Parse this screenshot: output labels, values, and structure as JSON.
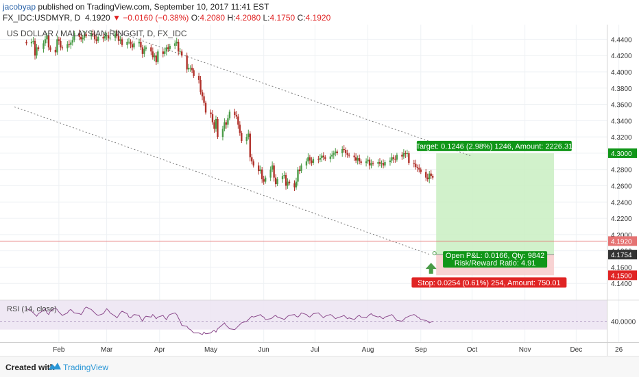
{
  "header": {
    "username": "jacobyap",
    "published": "published on TradingView.com, September 10, 2017 11:41 EST",
    "symbol": "FX_IDC:USDMYR, D",
    "price": "4.1920",
    "change": "−0.0160 (−0.38%)",
    "o_label": "O:",
    "o_value": "4.2080",
    "h_label": "H:",
    "h_value": "4.2080",
    "l_label": "L:",
    "l_value": "4.1750",
    "c_label": "C:",
    "c_value": "4.1920"
  },
  "footer": {
    "created_with": "Created with",
    "brand": "TradingView"
  },
  "colors": {
    "up": "#4a9b47",
    "down": "#b0312a",
    "rsi": "#8b4a8c",
    "target": "#109618",
    "stop": "#e02424",
    "price_line": "#e57373"
  },
  "chart_data": {
    "type": "candlestick",
    "title": "US DOLLAR / MALAYSIAN RINGGIT, D, FX_IDC",
    "y_range": [
      4.12,
      4.458
    ],
    "y_ticks": [
      "4.4400",
      "4.4200",
      "4.4000",
      "4.3800",
      "4.3600",
      "4.3400",
      "4.3200",
      "4.3000",
      "4.2800",
      "4.2600",
      "4.2400",
      "4.2200",
      "4.2000",
      "4.1800",
      "4.1600",
      "4.1400"
    ],
    "x_labels": [
      "Feb",
      "Mar",
      "Apr",
      "May",
      "Jun",
      "Jul",
      "Aug",
      "Sep",
      "Oct",
      "Nov",
      "Dec",
      "26"
    ],
    "day_start": "2017-01-13",
    "last_day": "2017-09-08",
    "closes": [
      4.435,
      4.437,
      4.438,
      4.42,
      4.43,
      4.428,
      4.435,
      4.44,
      4.445,
      4.43,
      4.427,
      4.424,
      4.44,
      4.438,
      4.43,
      4.429,
      4.434,
      4.433,
      4.436,
      4.439,
      4.448,
      4.443,
      4.44,
      4.442,
      4.446,
      4.444,
      4.447,
      4.446,
      4.44,
      4.438,
      4.443,
      4.441,
      4.444,
      4.445,
      4.441,
      4.442,
      4.447,
      4.444,
      4.438,
      4.44,
      4.433,
      4.437,
      4.437,
      4.434,
      4.43,
      4.435,
      4.437,
      4.43,
      4.422,
      4.428,
      4.43,
      4.425,
      4.418,
      4.42,
      4.412,
      4.425,
      4.422,
      4.425,
      4.43,
      4.428,
      4.432,
      4.435,
      4.437,
      4.425,
      4.425,
      4.42,
      4.403,
      4.405,
      4.405,
      4.402,
      4.395,
      4.39,
      4.375,
      4.37,
      4.362,
      4.35,
      4.348,
      4.338,
      4.33,
      4.342,
      4.32,
      4.33,
      4.338,
      4.335,
      4.343,
      4.351,
      4.347,
      4.345,
      4.335,
      4.325,
      4.315,
      4.32,
      4.324,
      4.295,
      4.29,
      4.285,
      4.278,
      4.28,
      4.268,
      4.265,
      4.27,
      4.28,
      4.285,
      4.27,
      4.262,
      4.268,
      4.272,
      4.273,
      4.26,
      4.265,
      4.263,
      4.258,
      4.265,
      4.28,
      4.278,
      4.285,
      4.29,
      4.295,
      4.291,
      4.288,
      4.293,
      4.292,
      4.294,
      4.297,
      4.295,
      4.293,
      4.296,
      4.298,
      4.3,
      4.302,
      4.3,
      4.305,
      4.304,
      4.3,
      4.298,
      4.297,
      4.295,
      4.291,
      4.294,
      4.29,
      4.288,
      4.29,
      4.292,
      4.285,
      4.288,
      4.287,
      4.289,
      4.287,
      4.288,
      4.285,
      4.289,
      4.291,
      4.295,
      4.293,
      4.292,
      4.298,
      4.296,
      4.3,
      4.299,
      4.3,
      4.288,
      4.287,
      4.283,
      4.282,
      4.28,
      4.277,
      4.27,
      4.268,
      4.275,
      4.272,
      4.27,
      4.269,
      4.258,
      4.24,
      4.225,
      4.208,
      4.192
    ],
    "trendlines": [
      {
        "from": [
          "2017-03-03",
          4.452
        ],
        "to": [
          "2017-09-30",
          4.297
        ]
      },
      {
        "from": [
          "2017-01-06",
          4.357
        ],
        "to": [
          "2017-09-07",
          4.175
        ]
      }
    ],
    "position": {
      "direction": "long",
      "entry": 4.1754,
      "target": 4.3,
      "stop": 4.15,
      "start_day": "2017-09-10",
      "end_day": "2017-11-18",
      "target_label": "Target: 0.1246 (2.98%) 1246, Amount: 2226.31",
      "stop_label": "Stop: 0.0254 (0.61%) 254, Amount: 750.01",
      "pnl_label": "Open P&L: 0.0166, Qty: 9842",
      "rr_label": "Risk/Reward Ratio: 4.91"
    },
    "price_line": 4.192,
    "price_badges": [
      "4.3000",
      "4.1920",
      "4.1754",
      "4.1500"
    ],
    "rsi": {
      "label": "RSI (14, close)",
      "y_range": [
        15,
        65
      ],
      "level_label": "40.0000",
      "level": 40,
      "band": [
        30,
        70
      ],
      "values": [
        55,
        52,
        50,
        48,
        46,
        49,
        53,
        55,
        50,
        48,
        52,
        56,
        54,
        51,
        49,
        47,
        50,
        53,
        54,
        52,
        50,
        49,
        48,
        51,
        55,
        57,
        54,
        52,
        50,
        48,
        47,
        49,
        52,
        55,
        53,
        50,
        46,
        44,
        47,
        50,
        52,
        49,
        45,
        44,
        46,
        48,
        47,
        43,
        40,
        44,
        46,
        45,
        48,
        46,
        43,
        45,
        47,
        44,
        42,
        46,
        48,
        50,
        48,
        44,
        40,
        35,
        34,
        31,
        30,
        28,
        26,
        26,
        25,
        24,
        27,
        25,
        26,
        28,
        29,
        27,
        31,
        36,
        38,
        35,
        33,
        31,
        30,
        32,
        34,
        36,
        38,
        40,
        42,
        44,
        46,
        45,
        47,
        48,
        46,
        45,
        42,
        43,
        44,
        46,
        47,
        45,
        43,
        42,
        44,
        46,
        47,
        48,
        46,
        45,
        47,
        50,
        48,
        46,
        45,
        47,
        49,
        50,
        48,
        46,
        44,
        46,
        48,
        47,
        45,
        43,
        44,
        46,
        47,
        45,
        43,
        44,
        42,
        44,
        46,
        47,
        45,
        44,
        46,
        48,
        49,
        47,
        45,
        46,
        44,
        43,
        45,
        47,
        48,
        46,
        43,
        41,
        40,
        42,
        44,
        45,
        46,
        48,
        47,
        45,
        44,
        42,
        41,
        40,
        38,
        39,
        40,
        36,
        32,
        28,
        24,
        20,
        17
      ]
    }
  }
}
